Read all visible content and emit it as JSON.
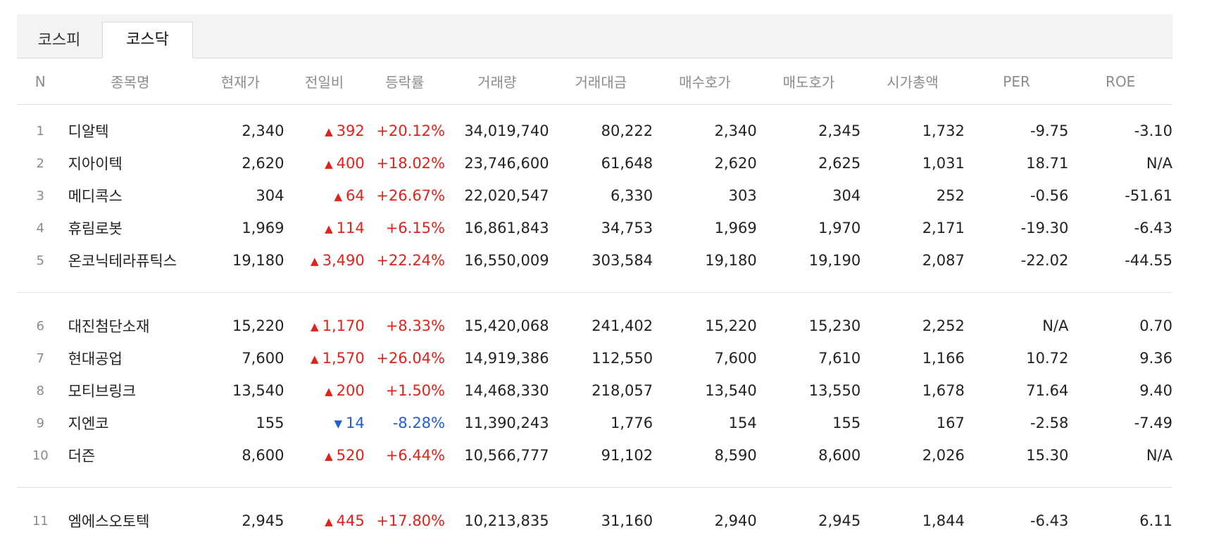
{
  "tabs": [
    {
      "label": "코스피",
      "active": false
    },
    {
      "label": "코스닥",
      "active": true
    }
  ],
  "columns": [
    "N",
    "종목명",
    "현재가",
    "전일비",
    "등락률",
    "거래량",
    "거래대금",
    "매수호가",
    "매도호가",
    "시가총액",
    "PER",
    "ROE"
  ],
  "colors": {
    "up": "#e0231a",
    "down": "#1f5ed8"
  },
  "rows": [
    {
      "n": "1",
      "name": "디알텍",
      "price": "2,340",
      "dir": "up",
      "change": "392",
      "rate": "+20.12%",
      "volume": "34,019,740",
      "amount": "80,222",
      "bid": "2,340",
      "ask": "2,345",
      "mcap": "1,732",
      "per": "-9.75",
      "roe": "-3.10"
    },
    {
      "n": "2",
      "name": "지아이텍",
      "price": "2,620",
      "dir": "up",
      "change": "400",
      "rate": "+18.02%",
      "volume": "23,746,600",
      "amount": "61,648",
      "bid": "2,620",
      "ask": "2,625",
      "mcap": "1,031",
      "per": "18.71",
      "roe": "N/A"
    },
    {
      "n": "3",
      "name": "메디콕스",
      "price": "304",
      "dir": "up",
      "change": "64",
      "rate": "+26.67%",
      "volume": "22,020,547",
      "amount": "6,330",
      "bid": "303",
      "ask": "304",
      "mcap": "252",
      "per": "-0.56",
      "roe": "-51.61"
    },
    {
      "n": "4",
      "name": "휴림로봇",
      "price": "1,969",
      "dir": "up",
      "change": "114",
      "rate": "+6.15%",
      "volume": "16,861,843",
      "amount": "34,753",
      "bid": "1,969",
      "ask": "1,970",
      "mcap": "2,171",
      "per": "-19.30",
      "roe": "-6.43"
    },
    {
      "n": "5",
      "name": "온코닉테라퓨틱스",
      "price": "19,180",
      "dir": "up",
      "change": "3,490",
      "rate": "+22.24%",
      "volume": "16,550,009",
      "amount": "303,584",
      "bid": "19,180",
      "ask": "19,190",
      "mcap": "2,087",
      "per": "-22.02",
      "roe": "-44.55"
    },
    {
      "n": "6",
      "name": "대진첨단소재",
      "price": "15,220",
      "dir": "up",
      "change": "1,170",
      "rate": "+8.33%",
      "volume": "15,420,068",
      "amount": "241,402",
      "bid": "15,220",
      "ask": "15,230",
      "mcap": "2,252",
      "per": "N/A",
      "roe": "0.70"
    },
    {
      "n": "7",
      "name": "현대공업",
      "price": "7,600",
      "dir": "up",
      "change": "1,570",
      "rate": "+26.04%",
      "volume": "14,919,386",
      "amount": "112,550",
      "bid": "7,600",
      "ask": "7,610",
      "mcap": "1,166",
      "per": "10.72",
      "roe": "9.36"
    },
    {
      "n": "8",
      "name": "모티브링크",
      "price": "13,540",
      "dir": "up",
      "change": "200",
      "rate": "+1.50%",
      "volume": "14,468,330",
      "amount": "218,057",
      "bid": "13,540",
      "ask": "13,550",
      "mcap": "1,678",
      "per": "71.64",
      "roe": "9.40"
    },
    {
      "n": "9",
      "name": "지엔코",
      "price": "155",
      "dir": "down",
      "change": "14",
      "rate": "-8.28%",
      "volume": "11,390,243",
      "amount": "1,776",
      "bid": "154",
      "ask": "155",
      "mcap": "167",
      "per": "-2.58",
      "roe": "-7.49"
    },
    {
      "n": "10",
      "name": "더즌",
      "price": "8,600",
      "dir": "up",
      "change": "520",
      "rate": "+6.44%",
      "volume": "10,566,777",
      "amount": "91,102",
      "bid": "8,590",
      "ask": "8,600",
      "mcap": "2,026",
      "per": "15.30",
      "roe": "N/A"
    },
    {
      "n": "11",
      "name": "엠에스오토텍",
      "price": "2,945",
      "dir": "up",
      "change": "445",
      "rate": "+17.80%",
      "volume": "10,213,835",
      "amount": "31,160",
      "bid": "2,940",
      "ask": "2,945",
      "mcap": "1,844",
      "per": "-6.43",
      "roe": "6.11"
    }
  ]
}
